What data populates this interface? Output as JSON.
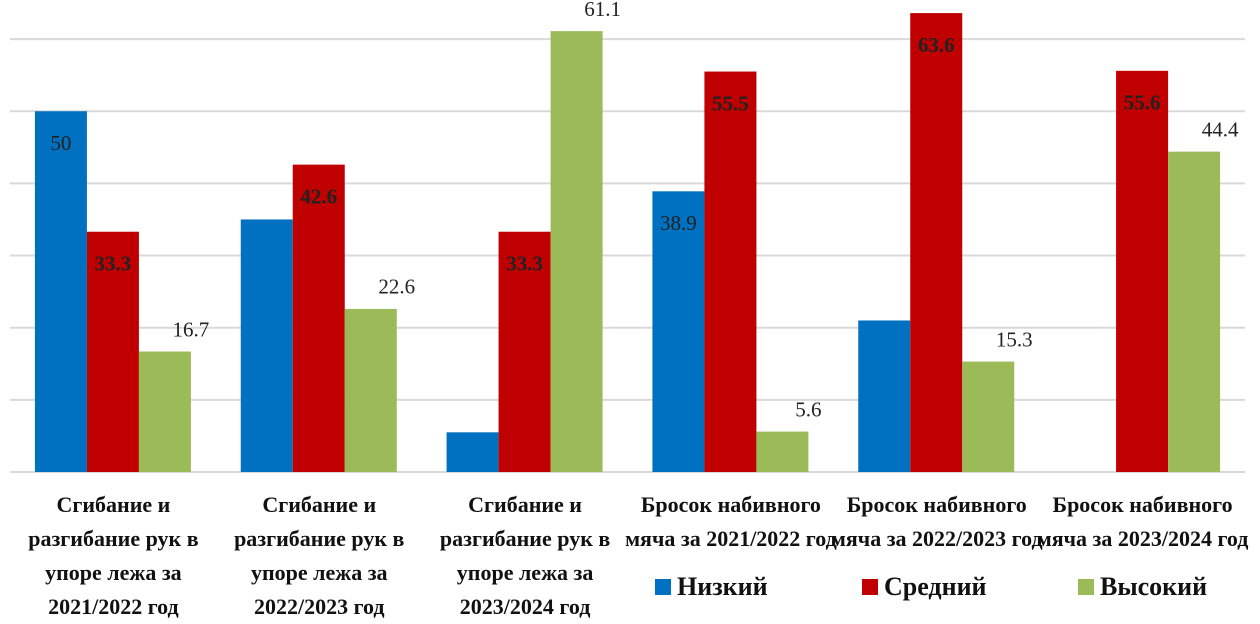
{
  "chart_data": {
    "type": "bar",
    "categories": [
      "Сгибание и разгибание рук в упоре лежа за 2021/2022 год",
      "Сгибание и разгибание рук в упоре лежа за 2022/2023 год",
      "Сгибание и разгибание рук в упоре лежа за 2023/2024 год",
      "Бросок набивного мяча за 2021/2022 год",
      "Бросок набивного мяча за 2022/2023 год",
      "Бросок набивного мяча за 2023/2024 год"
    ],
    "series": [
      {
        "name": "Низкий",
        "color": "#0070c0",
        "values": [
          50,
          35,
          5.5,
          38.9,
          21,
          null
        ],
        "value_labels": [
          "50",
          null,
          null,
          "38.9",
          null,
          null
        ]
      },
      {
        "name": "Средний",
        "color": "#c00000",
        "values": [
          33.3,
          42.6,
          33.3,
          55.5,
          63.6,
          55.6
        ]
      },
      {
        "name": "Высокий",
        "color": "#9bbb59",
        "values": [
          16.7,
          22.6,
          61.1,
          5.6,
          15.3,
          44.4
        ]
      }
    ],
    "ylim": [
      0,
      65
    ],
    "yticks": [
      0,
      10,
      20,
      30,
      40,
      50,
      60
    ],
    "grid": true,
    "legend": "bottom-right"
  }
}
